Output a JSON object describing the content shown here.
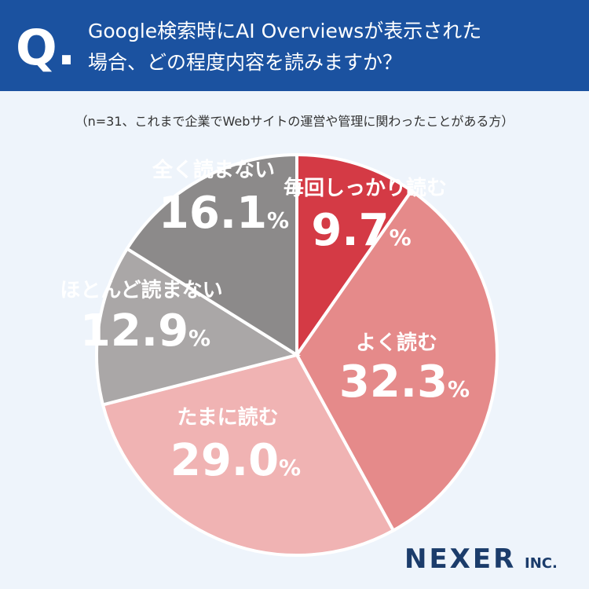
{
  "header": {
    "q_mark": "Q.",
    "title_lines": [
      "Google検索時にAI Overviewsが表示された",
      "場合、どの程度内容を読みますか？"
    ]
  },
  "chart_data": {
    "type": "pie",
    "subtitle": "（n=31、これまで企業でWebサイトの運営や管理に関わったことがある方）",
    "categories": [
      "毎回しっかり読む",
      "よく読む",
      "たまに読む",
      "ほとんど読まない",
      "全く読まない"
    ],
    "values": [
      9.7,
      32.3,
      29.0,
      12.9,
      16.1
    ],
    "value_labels": [
      "9.7%",
      "32.3%",
      "29.0%",
      "12.9%",
      "16.1%"
    ],
    "colors": [
      "#d43a45",
      "#e58a8a",
      "#f0b3b3",
      "#aaa7a7",
      "#8c8a8a"
    ]
  },
  "logo": {
    "name": "NEXER",
    "suffix": "INC."
  }
}
